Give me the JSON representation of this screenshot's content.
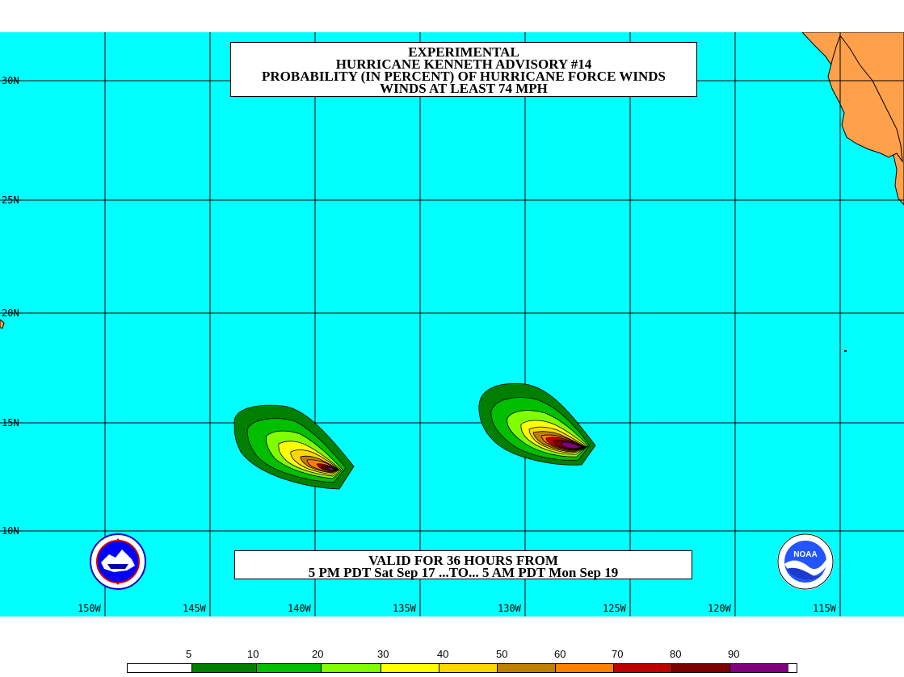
{
  "title_lines": [
    "EXPERIMENTAL",
    "HURRICANE KENNETH ADVISORY #14",
    "PROBABILITY (IN PERCENT) OF HURRICANE FORCE WINDS",
    "WINDS AT LEAST 74 MPH"
  ],
  "valid_lines": [
    "VALID FOR 36 HOURS FROM",
    "5 PM PDT Sat Sep 17 ...TO... 5 AM PDT Mon Sep 19"
  ],
  "lat_labels": [
    "30N",
    "25N",
    "20N",
    "15N",
    "10N"
  ],
  "lon_labels": [
    "150W",
    "145W",
    "140W",
    "135W",
    "130W",
    "125W",
    "120W",
    "115W"
  ],
  "legend": {
    "labels": [
      "5",
      "10",
      "20",
      "30",
      "40",
      "50",
      "60",
      "70",
      "80",
      "90"
    ],
    "colors": [
      "#ffffff",
      "#007f00",
      "#00bf00",
      "#7fff00",
      "#ffff00",
      "#ffd700",
      "#bf7f00",
      "#ff7f00",
      "#bf0000",
      "#7f0000",
      "#7f007f"
    ]
  },
  "colors": {
    "ocean": "#00ffff",
    "land": "#ffa04b",
    "grid": "#000000"
  },
  "logos": {
    "left": "nws-logo",
    "right": "noaa-logo",
    "noaa_text": "NOAA"
  }
}
